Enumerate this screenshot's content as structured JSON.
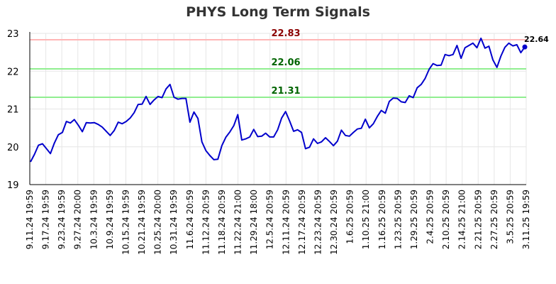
{
  "chart_data": {
    "type": "line",
    "title": "PHYS Long Term Signals",
    "xlabel": "",
    "ylabel": "",
    "ylim": [
      19,
      23
    ],
    "grid": true,
    "y_ticks": [
      "19",
      "20",
      "21",
      "22",
      "23"
    ],
    "x_ticks": [
      "9.11.24 19:59",
      "9.17.24 19:59",
      "9.23.24 19:59",
      "9.27.24 20:00",
      "10.3.24 19:59",
      "10.9.24 19:59",
      "10.15.24 19:59",
      "10.21.24 19:59",
      "10.25.24 20:00",
      "10.31.24 19:59",
      "11.6.24 20:59",
      "11.12.24 20:59",
      "11.18.24 20:59",
      "11.22.24 21:00",
      "11.29.24 18:00",
      "12.5.24 20:59",
      "12.11.24 20:59",
      "12.17.24 20:59",
      "12.23.24 20:59",
      "12.30.24 20:59",
      "1.6.25 20:59",
      "1.10.25 21:00",
      "1.16.25 20:59",
      "1.23.25 20:59",
      "1.29.25 20:59",
      "2.4.25 20:59",
      "2.10.25 20:59",
      "2.14.25 21:00",
      "2.21.25 20:59",
      "2.27.25 20:59",
      "3.5.25 20:59",
      "3.11.25 19:59"
    ],
    "series": [
      {
        "name": "",
        "color": "#0000cc",
        "values": [
          19.6,
          19.8,
          20.04,
          20.08,
          19.95,
          19.82,
          20.1,
          20.32,
          20.38,
          20.67,
          20.63,
          20.72,
          20.57,
          20.4,
          20.64,
          20.63,
          20.64,
          20.59,
          20.52,
          20.41,
          20.3,
          20.43,
          20.65,
          20.61,
          20.67,
          20.76,
          20.9,
          21.12,
          21.13,
          21.33,
          21.12,
          21.24,
          21.33,
          21.3,
          21.53,
          21.65,
          21.31,
          21.26,
          21.28,
          21.28,
          20.65,
          20.92,
          20.75,
          20.13,
          19.9,
          19.77,
          19.66,
          19.67,
          20.03,
          20.25,
          20.39,
          20.56,
          20.85,
          20.18,
          20.21,
          20.26,
          20.46,
          20.27,
          20.28,
          20.36,
          20.26,
          20.26,
          20.45,
          20.76,
          20.93,
          20.68,
          20.41,
          20.45,
          20.38,
          19.95,
          19.99,
          20.21,
          20.09,
          20.13,
          20.24,
          20.14,
          20.03,
          20.15,
          20.44,
          20.3,
          20.28,
          20.38,
          20.47,
          20.49,
          20.73,
          20.5,
          20.61,
          20.8,
          20.96,
          20.89,
          21.2,
          21.29,
          21.28,
          21.19,
          21.17,
          21.35,
          21.3,
          21.56,
          21.65,
          21.81,
          22.05,
          22.2,
          22.15,
          22.16,
          22.44,
          22.41,
          22.44,
          22.68,
          22.34,
          22.62,
          22.68,
          22.74,
          22.62,
          22.87,
          22.61,
          22.66,
          22.3,
          22.1,
          22.4,
          22.63,
          22.74,
          22.67,
          22.7,
          22.49,
          22.64
        ]
      }
    ],
    "levels": [
      {
        "value": 22.83,
        "label": "22.83",
        "line_color": "#ffb6b6",
        "text_color": "#8b0000"
      },
      {
        "value": 22.06,
        "label": "22.06",
        "line_color": "#90ee90",
        "text_color": "#006400"
      },
      {
        "value": 21.31,
        "label": "21.31",
        "line_color": "#90ee90",
        "text_color": "#006400"
      }
    ],
    "last_value_label": "22.64"
  }
}
